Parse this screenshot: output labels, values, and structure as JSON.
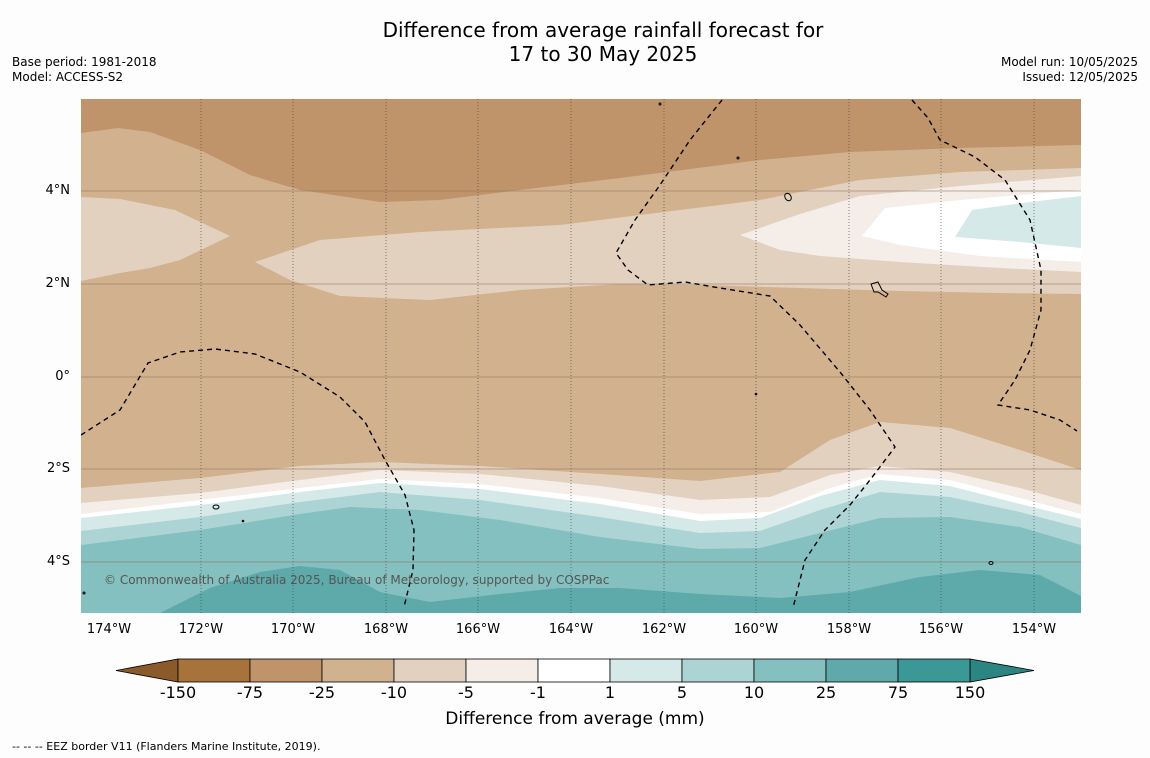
{
  "title": {
    "line1": "Difference from average rainfall forecast for",
    "line2": "17 to 30 May 2025"
  },
  "meta_left": {
    "base_period": "Base period: 1981-2018",
    "model": "Model: ACCESS-S2"
  },
  "meta_right": {
    "model_run": "Model run: 10/05/2025",
    "issued": "Issued: 12/05/2025"
  },
  "latitude_labels": [
    "4°N",
    "2°N",
    "0°",
    "2°S",
    "4°S"
  ],
  "longitude_labels": [
    "174°W",
    "172°W",
    "170°W",
    "168°W",
    "166°W",
    "164°W",
    "162°W",
    "160°W",
    "158°W",
    "156°W",
    "154°W"
  ],
  "copyright": "© Commonwealth of Australia 2025, Bureau of Meteorology, supported by COSPPac",
  "colorbar": {
    "ticks": [
      "-150",
      "-75",
      "-25",
      "-10",
      "-5",
      "-1",
      "1",
      "5",
      "10",
      "25",
      "75",
      "150"
    ],
    "colors": [
      "#a8733a",
      "#c0946a",
      "#d2b18f",
      "#e3d1c0",
      "#f4ede8",
      "#ffffff",
      "#d6e9e9",
      "#acd4d4",
      "#83c0bf",
      "#5eaaaa",
      "#3a9897"
    ],
    "under_color": "#8a5a2b",
    "over_color": "#2b8583",
    "label": "Difference from average (mm)"
  },
  "legend_footnote": "--  --  -- EEZ border V11 (Flanders Marine Institute, 2019)."
}
